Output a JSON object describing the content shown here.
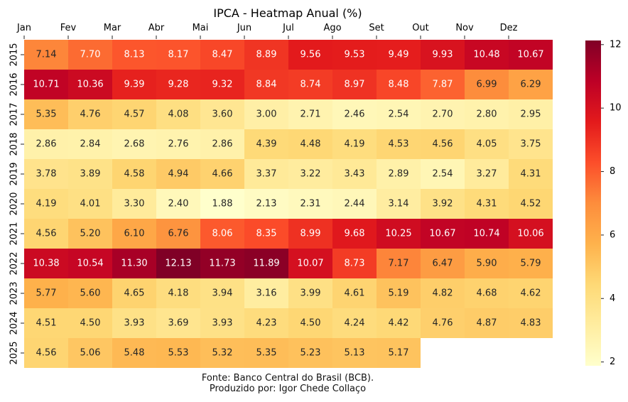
{
  "chart_data": {
    "type": "heatmap",
    "title": "IPCA - Heatmap Anual (%)",
    "xlabel": "",
    "ylabel": "",
    "columns": [
      "Jan",
      "Fev",
      "Mar",
      "Abr",
      "Mai",
      "Jun",
      "Jul",
      "Ago",
      "Set",
      "Out",
      "Nov",
      "Dez"
    ],
    "rows": [
      "2015",
      "2016",
      "2017",
      "2018",
      "2019",
      "2020",
      "2021",
      "2022",
      "2023",
      "2024",
      "2025"
    ],
    "values": [
      [
        7.14,
        7.7,
        8.13,
        8.17,
        8.47,
        8.89,
        9.56,
        9.53,
        9.49,
        9.93,
        10.48,
        10.67
      ],
      [
        10.71,
        10.36,
        9.39,
        9.28,
        9.32,
        8.84,
        8.74,
        8.97,
        8.48,
        7.87,
        6.99,
        6.29
      ],
      [
        5.35,
        4.76,
        4.57,
        4.08,
        3.6,
        3.0,
        2.71,
        2.46,
        2.54,
        2.7,
        2.8,
        2.95
      ],
      [
        2.86,
        2.84,
        2.68,
        2.76,
        2.86,
        4.39,
        4.48,
        4.19,
        4.53,
        4.56,
        4.05,
        3.75
      ],
      [
        3.78,
        3.89,
        4.58,
        4.94,
        4.66,
        3.37,
        3.22,
        3.43,
        2.89,
        2.54,
        3.27,
        4.31
      ],
      [
        4.19,
        4.01,
        3.3,
        2.4,
        1.88,
        2.13,
        2.31,
        2.44,
        3.14,
        3.92,
        4.31,
        4.52
      ],
      [
        4.56,
        5.2,
        6.1,
        6.76,
        8.06,
        8.35,
        8.99,
        9.68,
        10.25,
        10.67,
        10.74,
        10.06
      ],
      [
        10.38,
        10.54,
        11.3,
        12.13,
        11.73,
        11.89,
        10.07,
        8.73,
        7.17,
        6.47,
        5.9,
        5.79
      ],
      [
        5.77,
        5.6,
        4.65,
        4.18,
        3.94,
        3.16,
        3.99,
        4.61,
        5.19,
        4.82,
        4.68,
        4.62
      ],
      [
        4.51,
        4.5,
        3.93,
        3.69,
        3.93,
        4.23,
        4.5,
        4.24,
        4.42,
        4.76,
        4.87,
        4.83
      ],
      [
        4.56,
        5.06,
        5.48,
        5.53,
        5.32,
        5.35,
        5.23,
        5.13,
        5.17,
        null,
        null,
        null
      ]
    ],
    "value_range": [
      1.88,
      12.13
    ],
    "colorbar": {
      "colormap": "YlOrRd",
      "ticks": [
        2,
        4,
        6,
        8,
        10,
        12
      ],
      "tick_labels": [
        "2",
        "4",
        "6",
        "8",
        "10",
        "12"
      ]
    }
  },
  "footer": {
    "source_line": "Fonte: Banco Central do Brasil (BCB).",
    "author_line": "Produzido por: Igor Chede Collaço"
  }
}
